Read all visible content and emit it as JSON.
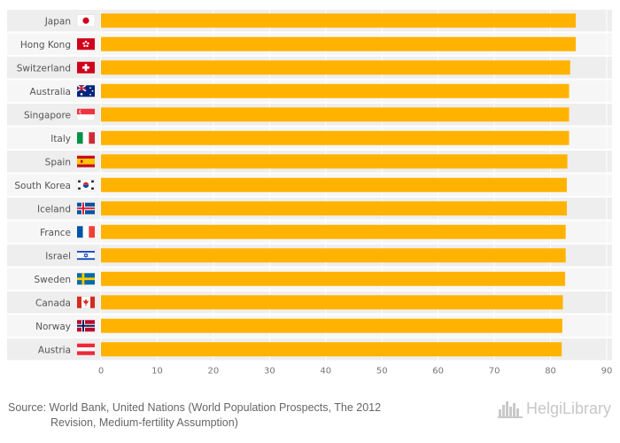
{
  "chart_data": {
    "type": "bar",
    "orientation": "horizontal",
    "categories": [
      "Japan",
      "Hong Kong",
      "Switzerland",
      "Australia",
      "Singapore",
      "Italy",
      "Spain",
      "South Korea",
      "Iceland",
      "France",
      "Israel",
      "Sweden",
      "Canada",
      "Norway",
      "Austria"
    ],
    "values": [
      84.5,
      84.5,
      83.5,
      83.3,
      83.3,
      83.3,
      83.0,
      82.9,
      82.9,
      82.7,
      82.7,
      82.6,
      82.2,
      82.1,
      82.0
    ],
    "flag_icons": [
      "japan-flag",
      "hong-kong-flag",
      "switzerland-flag",
      "australia-flag",
      "singapore-flag",
      "italy-flag",
      "spain-flag",
      "south-korea-flag",
      "iceland-flag",
      "france-flag",
      "israel-flag",
      "sweden-flag",
      "canada-flag",
      "norway-flag",
      "austria-flag"
    ],
    "xlim": [
      0,
      90
    ],
    "xticks": [
      "0",
      "10",
      "20",
      "30",
      "40",
      "50",
      "60",
      "70",
      "80",
      "90"
    ],
    "bar_color": "#FFB300",
    "title": "",
    "xlabel": "",
    "ylabel": ""
  },
  "footer": {
    "source_line1": "Source: World Bank, United Nations (World Population Prospects, The 2012",
    "source_line2": "Revision, Medium-fertility Assumption)",
    "logo_text": "HelgiLibrary",
    "logo_icon": "city-skyline-icon"
  }
}
